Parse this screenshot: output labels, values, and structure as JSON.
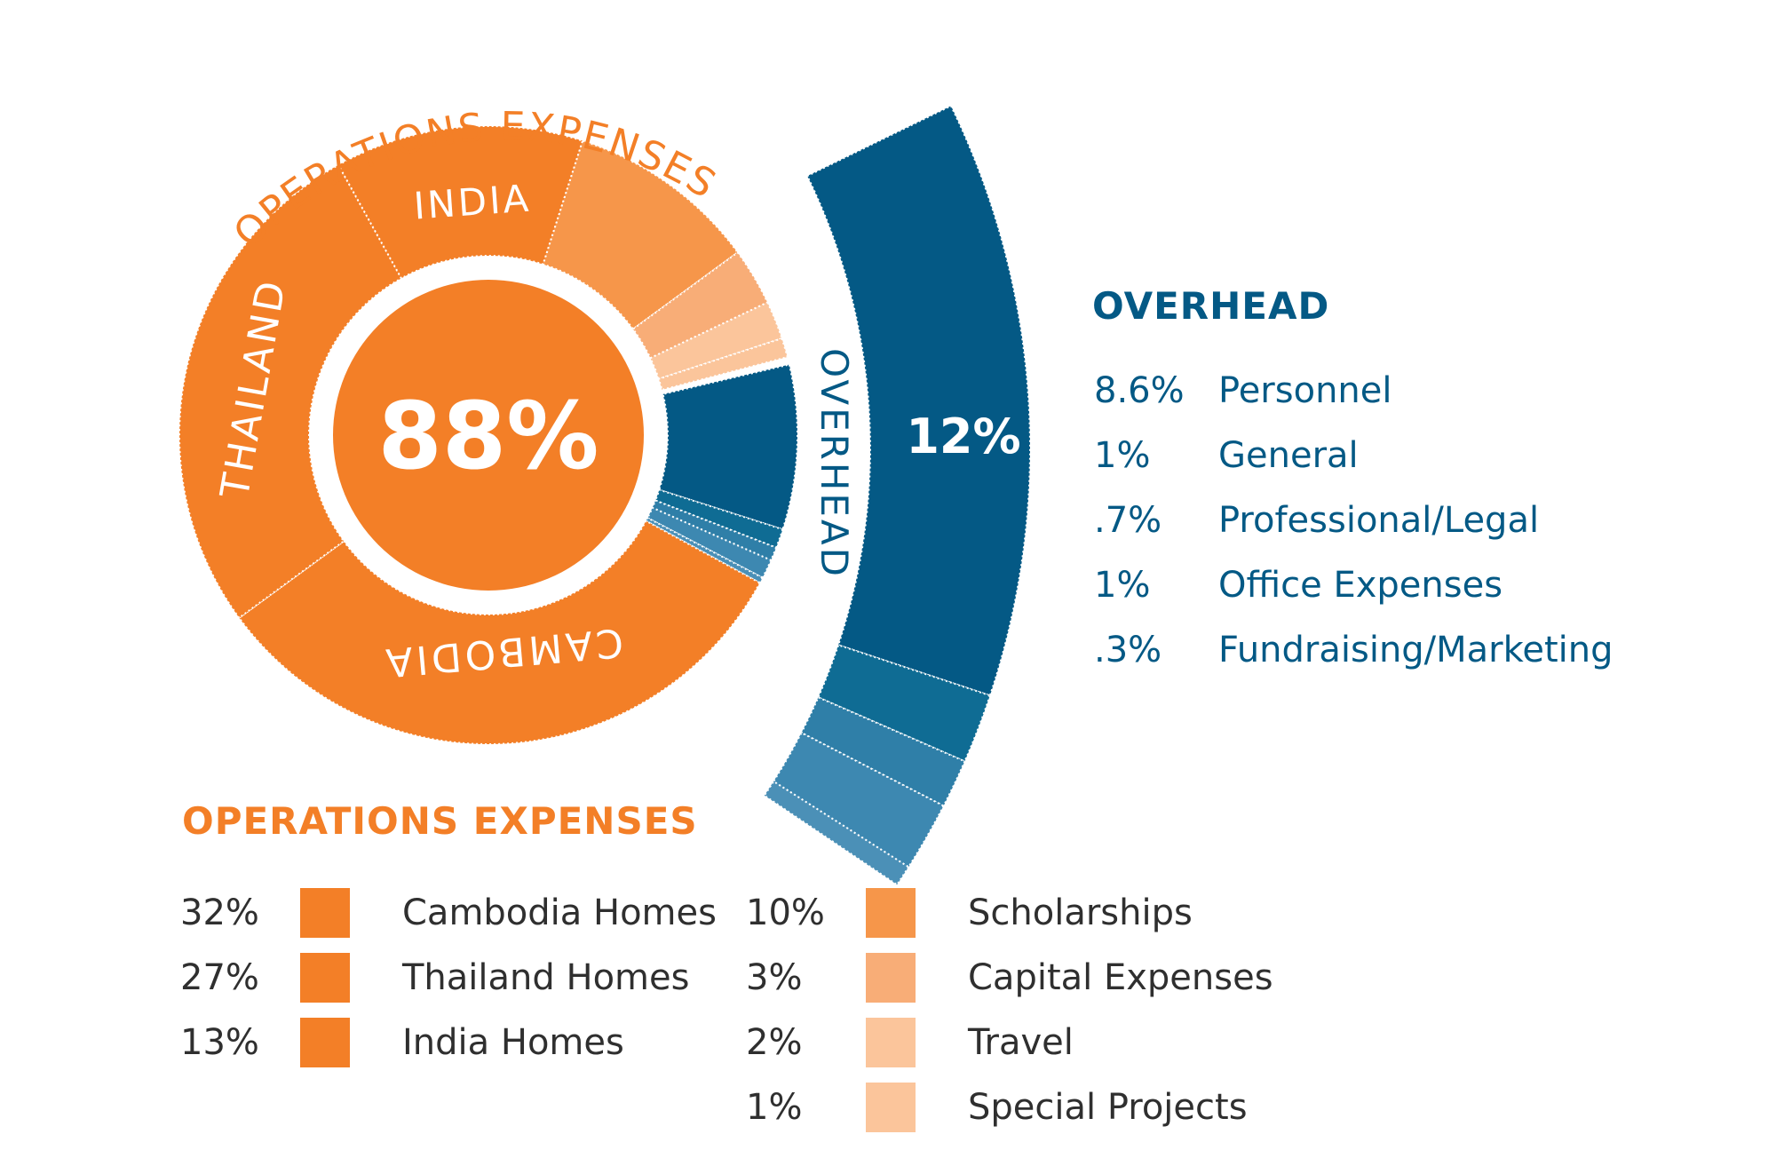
{
  "chart_data": {
    "type": "pie",
    "title": "",
    "center_label": "88%",
    "ring_labels": {
      "operations_arc": "OPERATIONS EXPENSES",
      "thailand": "THAILAND",
      "india": "INDIA",
      "cambodia": "CAMBODIA",
      "overhead_arc": "OVERHEAD"
    },
    "operations": {
      "title": "OPERATIONS EXPENSES",
      "total": 88,
      "items": [
        {
          "pct": "32%",
          "value": 32,
          "label": "Cambodia Homes",
          "color": "#f37f27"
        },
        {
          "pct": "27%",
          "value": 27,
          "label": "Thailand Homes",
          "color": "#f37f27"
        },
        {
          "pct": "13%",
          "value": 13,
          "label": "India Homes",
          "color": "#f37f27"
        },
        {
          "pct": "10%",
          "value": 10,
          "label": "Scholarships",
          "color": "#f6964a"
        },
        {
          "pct": "3%",
          "value": 3,
          "label": "Capital Expenses",
          "color": "#f8ad77"
        },
        {
          "pct": "2%",
          "value": 2,
          "label": "Travel",
          "color": "#fbc59b"
        },
        {
          "pct": "1%",
          "value": 1,
          "label": "Special Projects",
          "color": "#fbc59b"
        }
      ]
    },
    "overhead": {
      "title": "OVERHEAD",
      "total": 12,
      "total_label": "12%",
      "items": [
        {
          "pct": "8.6%",
          "value": 8.6,
          "label": "Personnel",
          "color": "#045985"
        },
        {
          "pct": "1%",
          "value": 1,
          "label": "General",
          "color": "#0f6c94"
        },
        {
          "pct": ".7%",
          "value": 0.7,
          "label": "Professional/Legal",
          "color": "#2f7fa8"
        },
        {
          "pct": "1%",
          "value": 1,
          "label": "Office Expenses",
          "color": "#3d88b1"
        },
        {
          "pct": ".3%",
          "value": 0.3,
          "label": "Fundraising/Marketing",
          "color": "#4b90b7"
        }
      ]
    }
  }
}
